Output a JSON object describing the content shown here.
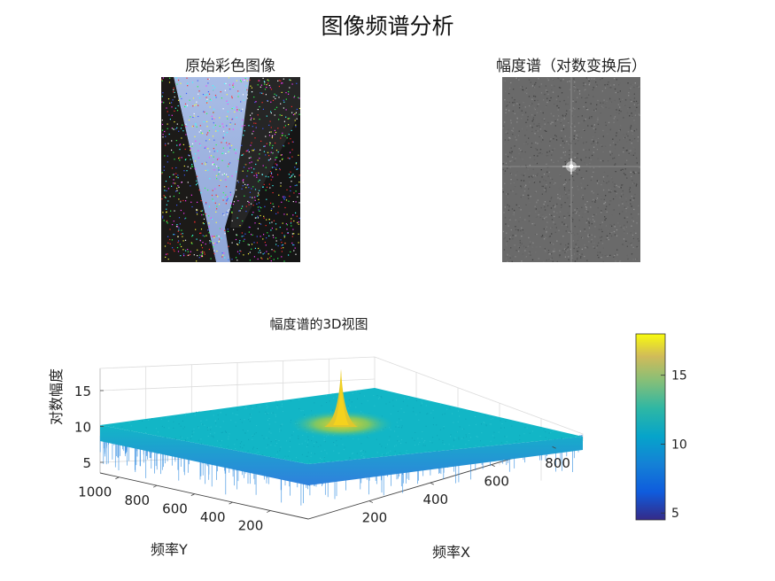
{
  "figure_title": "图像频谱分析",
  "panels": {
    "original": {
      "title": "原始彩色图像"
    },
    "spectrum": {
      "title": "幅度谱（对数变换后）"
    },
    "surface": {
      "title": "幅度谱的3D视图"
    }
  },
  "colors": {
    "surface_main": "#12b6c6",
    "surface_low": "#2b7bd8",
    "peak": "#f5d21e"
  },
  "chart_data": [
    {
      "type": "image",
      "title": "原始彩色图像"
    },
    {
      "type": "image",
      "title": "幅度谱（对数变换后）",
      "colormap": "gray"
    },
    {
      "type": "surface",
      "title": "幅度谱的3D视图",
      "xlabel": "频率X",
      "ylabel": "频率Y",
      "zlabel": "对数幅度",
      "x_ticks": [
        200,
        400,
        600,
        800
      ],
      "y_ticks": [
        200,
        400,
        600,
        800,
        1000
      ],
      "z_ticks": [
        5,
        10,
        15
      ],
      "zlim": [
        4,
        18
      ],
      "plateau_level": 10.5,
      "peak_value": 18,
      "colorbar": {
        "ticks": [
          5,
          10,
          15
        ],
        "range": [
          4.5,
          18
        ],
        "colormap": "parula"
      }
    }
  ]
}
